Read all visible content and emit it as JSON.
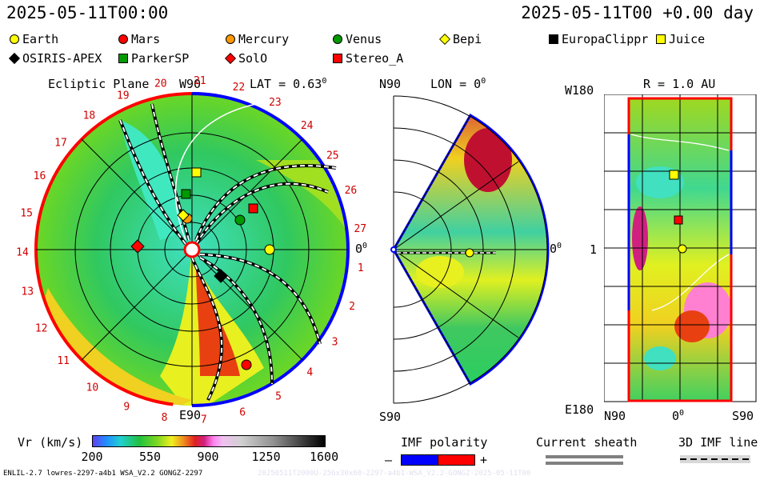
{
  "header": {
    "left_time": "2025-05-11T00:00",
    "right_time": "2025-05-11T00 +0.00 day"
  },
  "legend": [
    {
      "name": "Earth",
      "color": "#ffff00",
      "shape": "circle"
    },
    {
      "name": "Mars",
      "color": "#ff0000",
      "shape": "circle"
    },
    {
      "name": "Mercury",
      "color": "#ff9900",
      "shape": "circle"
    },
    {
      "name": "Venus",
      "color": "#009900",
      "shape": "circle"
    },
    {
      "name": "Bepi",
      "color": "#ffff00",
      "shape": "diamond"
    },
    {
      "name": "EuropaClippr",
      "color": "#000000",
      "shape": "square"
    },
    {
      "name": "Juice",
      "color": "#ffff00",
      "shape": "square"
    },
    {
      "name": "OSIRIS-APEX",
      "color": "#000000",
      "shape": "diamond"
    },
    {
      "name": "ParkerSP",
      "color": "#009900",
      "shape": "square"
    },
    {
      "name": "SolO",
      "color": "#ff0000",
      "shape": "diamond"
    },
    {
      "name": "Stereo_A",
      "color": "#ff0000",
      "shape": "square"
    }
  ],
  "ecliptic": {
    "title": "Ecliptic Plane",
    "lat_label": "LAT = 0.63",
    "lat_sup": "0",
    "top_label": "W90",
    "bottom_label": "E90",
    "right_label": "0",
    "right_sup": "0",
    "carrington": [
      "1",
      "2",
      "3",
      "4",
      "5",
      "6",
      "7",
      "8",
      "9",
      "10",
      "11",
      "12",
      "13",
      "14",
      "15",
      "16",
      "17",
      "18",
      "19",
      "20",
      "21",
      "22",
      "23",
      "24",
      "25",
      "26",
      "27"
    ]
  },
  "meridional": {
    "title_left": "N90",
    "title_right": "LON = 0",
    "title_sup": "0",
    "bottom_label": "S90",
    "right_label": "0",
    "right_sup": "0"
  },
  "latlon": {
    "title": "R = 1.0 AU",
    "top_left": "W180",
    "bottom_left": "E180",
    "mid_left": "1",
    "bottom_n": "N90",
    "bottom_mid": "0",
    "bottom_mid_sup": "0",
    "bottom_s": "S90"
  },
  "colorbar": {
    "label": "Vr (km/s)",
    "ticks": [
      "200",
      "550",
      "900",
      "1250",
      "1600"
    ]
  },
  "imf": {
    "title": "IMF polarity",
    "minus": "–",
    "plus": "+"
  },
  "sheath": {
    "title": "Current sheath"
  },
  "imf3d": {
    "title": "3D IMF line"
  },
  "footer": {
    "left": "ENLIL-2.7 lowres-2297-a4b1 WSA_V2.2 GONGZ-2297",
    "right": "20250511T2000U-256x30x60-2297-a4b1-WSA_V2.2-GONGZ-2025-05-11T00"
  }
}
